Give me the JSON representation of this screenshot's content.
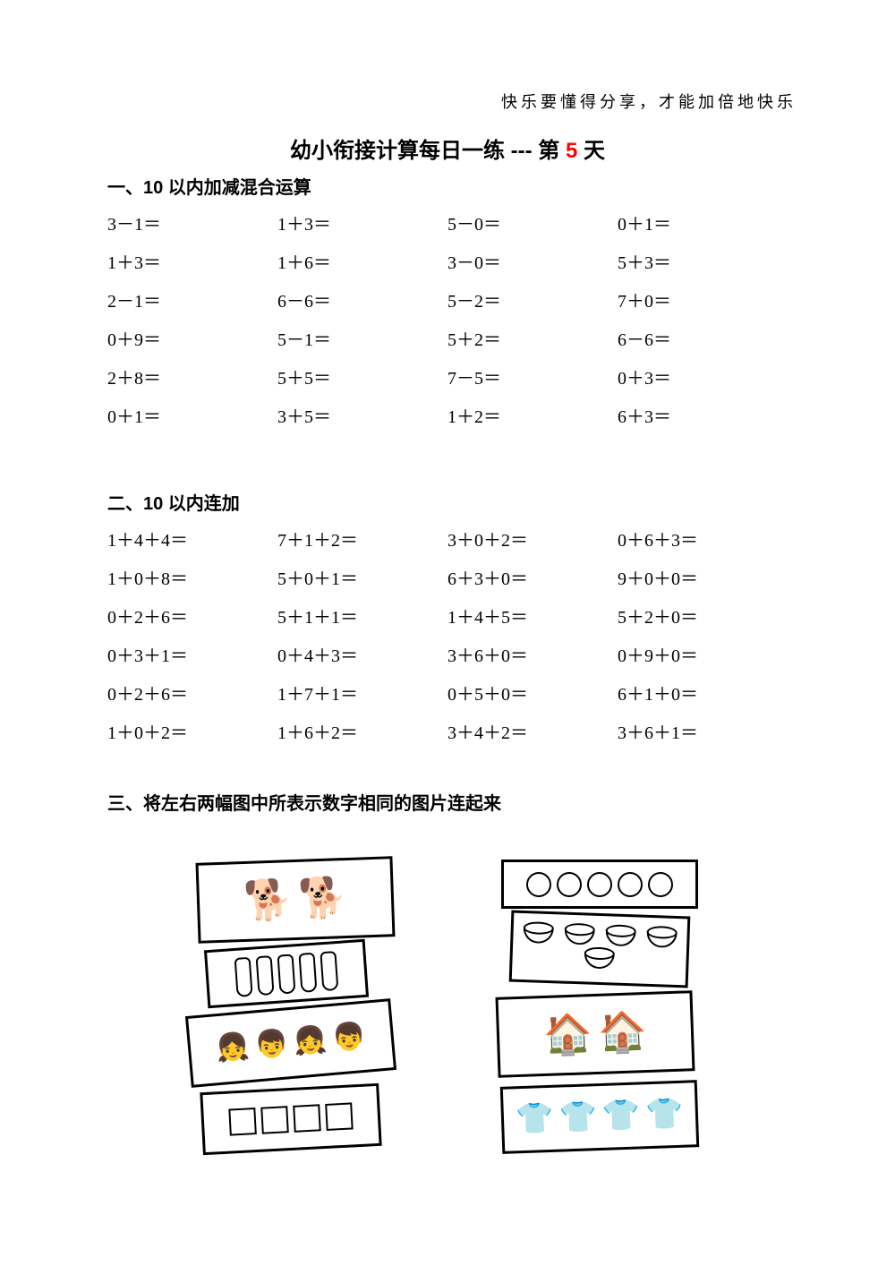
{
  "motto": "快乐要懂得分享，才能加倍地快乐",
  "title": {
    "prefix": "幼小衔接计算每日一练  ---  第 ",
    "day": "5",
    "suffix": " 天"
  },
  "section1": {
    "header": "一、10 以内加减混合运算",
    "problems": [
      "3－1＝",
      "1＋3＝",
      "5－0＝",
      "0＋1＝",
      "1＋3＝",
      "1＋6＝",
      "3－0＝",
      "5＋3＝",
      "2－1＝",
      "6－6＝",
      "5－2＝",
      "7＋0＝",
      "0＋9＝",
      "5－1＝",
      "5＋2＝",
      "6－6＝",
      "2＋8＝",
      "5＋5＝",
      "7－5＝",
      "0＋3＝",
      "0＋1＝",
      "3＋5＝",
      "1＋2＝",
      "6＋3＝"
    ]
  },
  "section2": {
    "header": "二、10 以内连加",
    "problems": [
      "1＋4＋4＝",
      "7＋1＋2＝",
      "3＋0＋2＝",
      "0＋6＋3＝",
      "1＋0＋8＝",
      "5＋0＋1＝",
      "6＋3＋0＝",
      "9＋0＋0＝",
      "0＋2＋6＝",
      "5＋1＋1＝",
      "1＋4＋5＝",
      "5＋2＋0＝",
      "0＋3＋1＝",
      "0＋4＋3＝",
      "3＋6＋0＝",
      "0＋9＋0＝",
      "0＋2＋6＝",
      "1＋7＋1＝",
      "0＋5＋0＝",
      "6＋1＋0＝",
      "1＋0＋2＝",
      "1＋6＋2＝",
      "3＋4＋2＝",
      "3＋6＋1＝"
    ]
  },
  "section3": {
    "header": "三、将左右两幅图中所表示数字相同的图片连起来",
    "left_cards": [
      {
        "type": "dogs",
        "count": 2
      },
      {
        "type": "pins",
        "count": 5
      },
      {
        "type": "kids",
        "count": 4
      },
      {
        "type": "squares",
        "count": 4
      }
    ],
    "right_cards": [
      {
        "type": "circles",
        "count": 5
      },
      {
        "type": "bowls",
        "count": 5
      },
      {
        "type": "houses",
        "count": 2
      },
      {
        "type": "shirts",
        "count": 4
      }
    ]
  },
  "colors": {
    "text": "#000000",
    "accent": "#ff0000",
    "background": "#ffffff"
  }
}
